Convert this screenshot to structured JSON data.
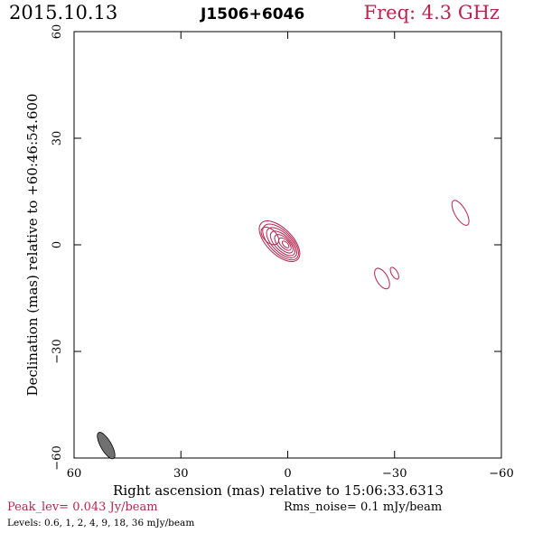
{
  "header": {
    "date": "2015.10.13",
    "source": "J1506+6046",
    "frequency": "Freq: 4.3 GHz"
  },
  "footer": {
    "peak": "Peak_lev=  0.043 Jy/beam",
    "rms": "Rms_noise=  0.1 mJy/beam",
    "levels": "Levels: 0.6,    1,    2,    4,    9,   18,   36 mJy/beam"
  },
  "colors": {
    "contour": "#b5264f",
    "beam": "#707070",
    "frame": "#000000"
  },
  "chart_data": {
    "type": "contour",
    "xlabel": "Right ascension (mas) relative to 15:06:33.6313",
    "ylabel": "Declination (mas) relative to +60:46:54.600",
    "xlim": [
      60,
      -60
    ],
    "ylim": [
      -60,
      60
    ],
    "xticks": [
      60,
      30,
      0,
      -30,
      -60
    ],
    "yticks": [
      60,
      30,
      0,
      -30,
      -60
    ],
    "xtick_labels": [
      "60",
      "30",
      "0",
      "−30",
      "−60"
    ],
    "ytick_labels": [
      "60",
      "30",
      "0",
      "−30",
      "−60"
    ],
    "beam": {
      "x": 51,
      "y": -56.5,
      "major_mas": 4.2,
      "minor_mas": 1.5,
      "pa_deg": 30
    },
    "contour_levels_mjy": [
      0.6,
      1,
      2,
      4,
      9,
      18,
      36
    ],
    "core": {
      "x": 1.5,
      "y": 0.5,
      "pa_deg": 135
    },
    "components": [
      {
        "x": -26.5,
        "y": -9.5,
        "major_mas": 4.5,
        "minor_mas": 2.2,
        "pa_deg": 30
      },
      {
        "x": -30,
        "y": -8,
        "major_mas": 2.6,
        "minor_mas": 1.2,
        "pa_deg": 30
      },
      {
        "x": -48.5,
        "y": 9,
        "major_mas": 5.5,
        "minor_mas": 2.2,
        "pa_deg": 30
      }
    ]
  }
}
